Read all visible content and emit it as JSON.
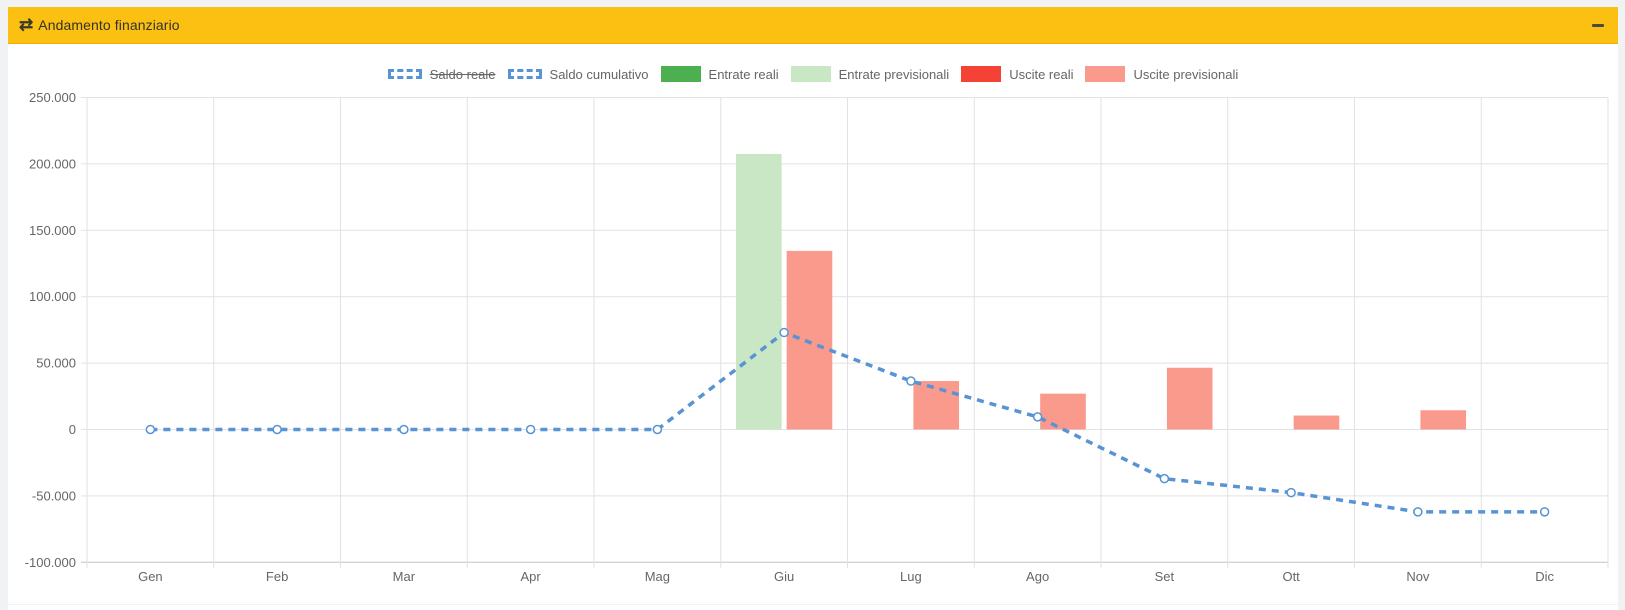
{
  "page": {
    "background": "#f1f2f4"
  },
  "panel": {
    "header": {
      "title": "Andamento finanziario",
      "icon": "swap-arrows",
      "icon_glyph": "⇄",
      "background": "#fcc013",
      "collapse_control": "minimize"
    }
  },
  "chart_data": {
    "type": "mixed-bar-line",
    "title": "",
    "xlabel": "",
    "ylabel": "",
    "categories": [
      "Gen",
      "Feb",
      "Mar",
      "Apr",
      "Mag",
      "Giu",
      "Lug",
      "Ago",
      "Set",
      "Ott",
      "Nov",
      "Dic"
    ],
    "ylim": [
      -100000,
      250000
    ],
    "ytick_step": 50000,
    "yticks": [
      {
        "v": 250000,
        "label": "250.000"
      },
      {
        "v": 200000,
        "label": "200.000"
      },
      {
        "v": 150000,
        "label": "150.000"
      },
      {
        "v": 100000,
        "label": "100.000"
      },
      {
        "v": 50000,
        "label": "50.000"
      },
      {
        "v": 0,
        "label": "0"
      },
      {
        "v": -50000,
        "label": "-50.000"
      },
      {
        "v": -100000,
        "label": "-100.000"
      }
    ],
    "grid": true,
    "legend_position": "top",
    "series": [
      {
        "name": "Saldo reale",
        "type": "line",
        "color": "#5893d5",
        "hidden": true,
        "values": null
      },
      {
        "name": "Saldo cumulativo",
        "type": "line",
        "color": "#5893d5",
        "hidden": false,
        "values": [
          0,
          0,
          0,
          0,
          0,
          73000,
          36500,
          9500,
          -37000,
          -47500,
          -62000,
          -62000
        ]
      },
      {
        "name": "Entrate reali",
        "type": "bar",
        "color": "#4caf50",
        "hidden": false,
        "values": [
          0,
          0,
          0,
          0,
          0,
          0,
          0,
          0,
          0,
          0,
          0,
          0
        ]
      },
      {
        "name": "Entrate previsionali",
        "type": "bar",
        "color": "#c9e7c4",
        "hidden": false,
        "values": [
          0,
          0,
          0,
          0,
          0,
          207500,
          0,
          0,
          0,
          0,
          0,
          0
        ]
      },
      {
        "name": "Uscite reali",
        "type": "bar",
        "color": "#f44336",
        "hidden": false,
        "values": [
          0,
          0,
          0,
          0,
          0,
          0,
          0,
          0,
          0,
          0,
          0,
          0
        ]
      },
      {
        "name": "Uscite previsionali",
        "type": "bar",
        "color": "#fa9a8d",
        "hidden": false,
        "values": [
          0,
          0,
          0,
          0,
          0,
          134500,
          36500,
          27000,
          46500,
          10500,
          14500,
          0
        ]
      }
    ],
    "colors": {
      "grid_line": "#e2e2e2",
      "axis_line": "#c3c3c3",
      "tick_label": "#666666",
      "point_fill": "#ffffff"
    }
  }
}
